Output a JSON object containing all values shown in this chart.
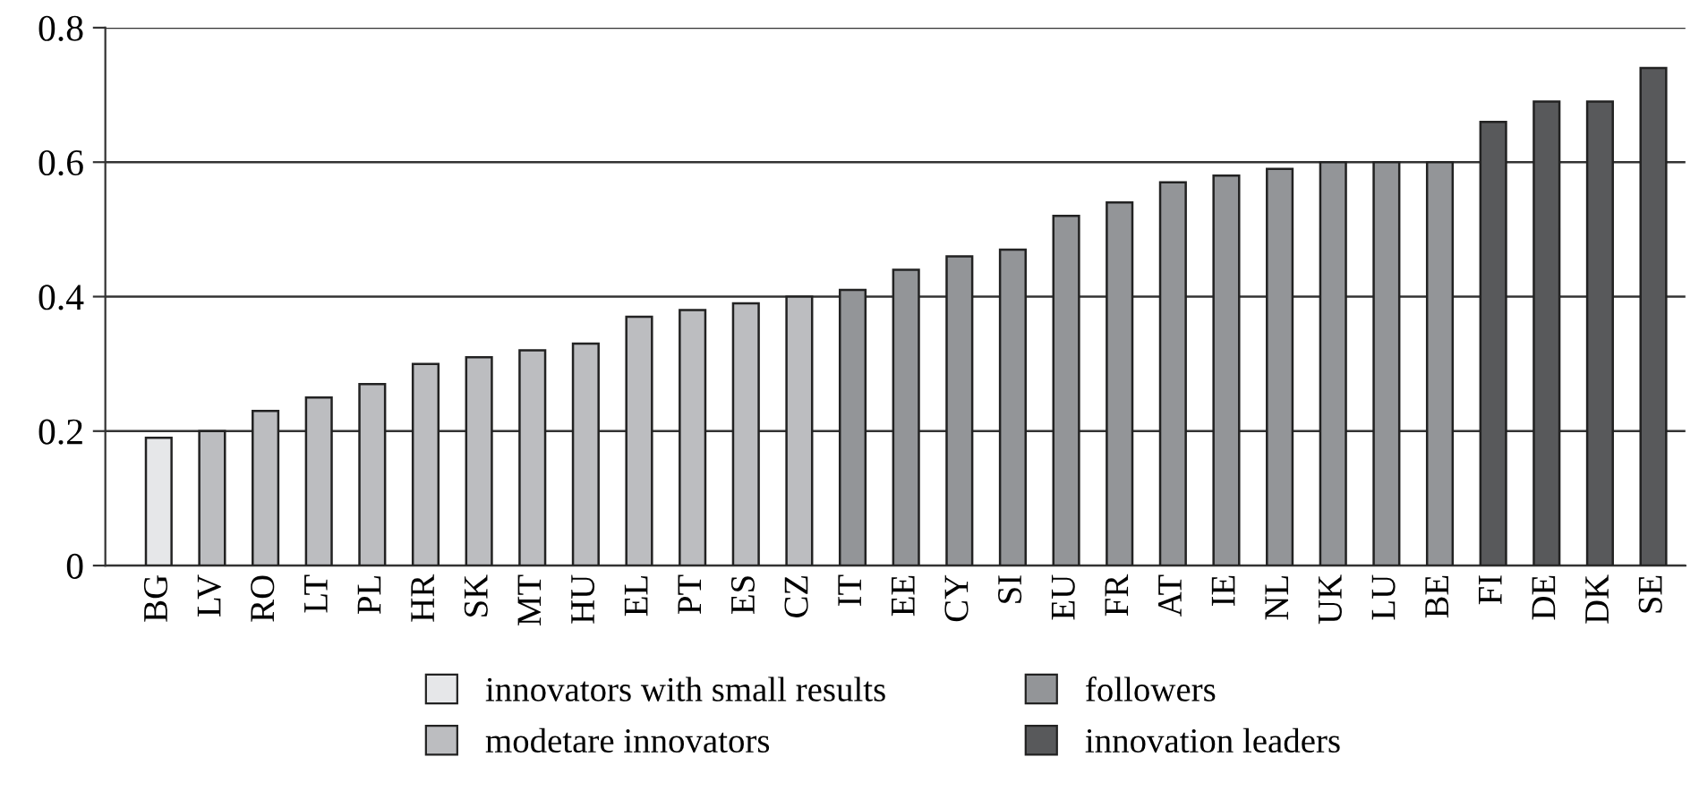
{
  "chart_data": {
    "type": "bar",
    "categories": [
      "BG",
      "LV",
      "RO",
      "LT",
      "PL",
      "HR",
      "SK",
      "MT",
      "HU",
      "EL",
      "PT",
      "ES",
      "CZ",
      "IT",
      "EE",
      "CY",
      "SI",
      "EU",
      "FR",
      "AT",
      "IE",
      "NL",
      "UK",
      "LU",
      "BE",
      "FI",
      "DE",
      "DK",
      "SE"
    ],
    "series": [
      {
        "name": "innovators with small results",
        "color": "#e6e7e9",
        "values": [
          0.19,
          null,
          null,
          null,
          null,
          null,
          null,
          null,
          null,
          null,
          null,
          null,
          null,
          null,
          null,
          null,
          null,
          null,
          null,
          null,
          null,
          null,
          null,
          null,
          null,
          null,
          null,
          null,
          null
        ]
      },
      {
        "name": "modetare innovators",
        "color": "#bcbdc0",
        "values": [
          null,
          0.2,
          0.23,
          0.25,
          0.27,
          0.3,
          0.31,
          0.32,
          0.33,
          0.37,
          0.38,
          0.39,
          0.4,
          null,
          null,
          null,
          null,
          null,
          null,
          null,
          null,
          null,
          null,
          null,
          null,
          null,
          null,
          null,
          null
        ]
      },
      {
        "name": "followers",
        "color": "#939598",
        "values": [
          null,
          null,
          null,
          null,
          null,
          null,
          null,
          null,
          null,
          null,
          null,
          null,
          null,
          0.41,
          0.44,
          0.46,
          0.47,
          0.52,
          0.54,
          0.57,
          0.58,
          0.59,
          0.6,
          0.6,
          0.6,
          null,
          null,
          null,
          null
        ]
      },
      {
        "name": "innovation leaders",
        "color": "#58595b",
        "values": [
          null,
          null,
          null,
          null,
          null,
          null,
          null,
          null,
          null,
          null,
          null,
          null,
          null,
          null,
          null,
          null,
          null,
          null,
          null,
          null,
          null,
          null,
          null,
          null,
          null,
          0.66,
          0.69,
          0.69,
          0.74
        ]
      }
    ],
    "ylim": [
      0,
      0.8
    ],
    "yticks": [
      {
        "value": 0,
        "label": "0"
      },
      0.2,
      0.4,
      0.6,
      0.8
    ],
    "grid": "y",
    "legend": "bottom"
  }
}
